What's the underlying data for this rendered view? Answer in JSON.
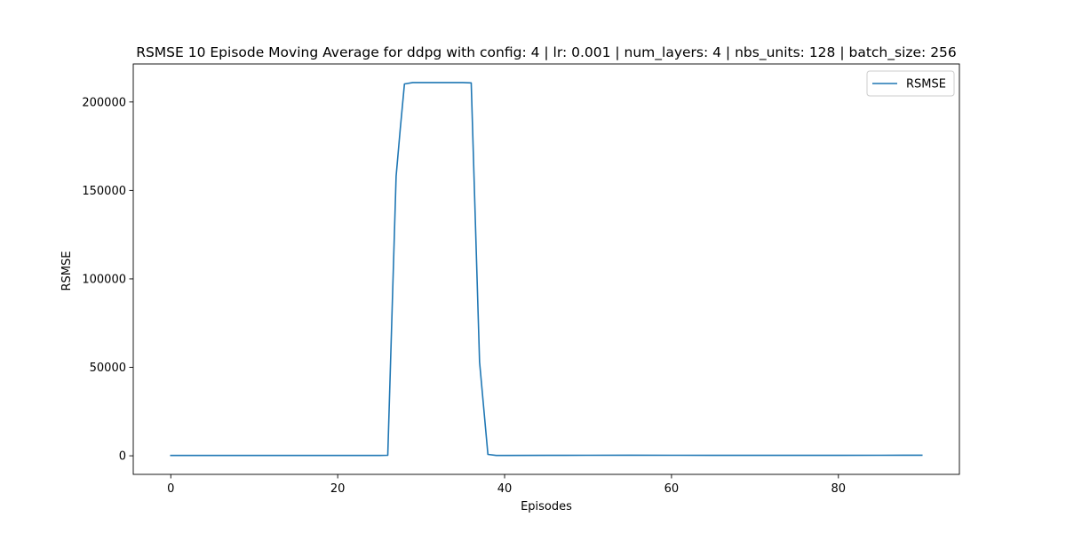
{
  "chart_data": {
    "type": "line",
    "title": "RSMSE 10 Episode Moving Average for ddpg with config: 4 | lr: 0.001 | num_layers: 4 | nbs_units: 128 | batch_size: 256",
    "xlabel": "Episodes",
    "ylabel": "RSMSE",
    "xlim": [
      -4.5,
      94.5
    ],
    "ylim": [
      -10500,
      221500
    ],
    "xticks": [
      0,
      20,
      40,
      60,
      80
    ],
    "yticks": [
      0,
      50000,
      100000,
      150000,
      200000
    ],
    "grid": false,
    "legend_position": "upper right",
    "series": [
      {
        "name": "RSMSE",
        "color": "#1f77b4",
        "x": [
          0,
          5,
          10,
          15,
          20,
          25,
          26,
          26.6,
          27,
          27.5,
          28,
          29,
          30,
          31,
          32,
          33,
          34,
          35,
          36,
          37,
          38,
          39,
          40,
          45,
          50,
          55,
          60,
          65,
          70,
          75,
          80,
          85,
          90
        ],
        "y": [
          200,
          200,
          200,
          200,
          200,
          200,
          300,
          95000,
          158000,
          185000,
          210200,
          211000,
          211000,
          211000,
          211000,
          211000,
          211000,
          211000,
          210800,
          53000,
          800,
          200,
          200,
          250,
          300,
          350,
          300,
          250,
          250,
          250,
          250,
          300,
          350
        ]
      }
    ]
  }
}
